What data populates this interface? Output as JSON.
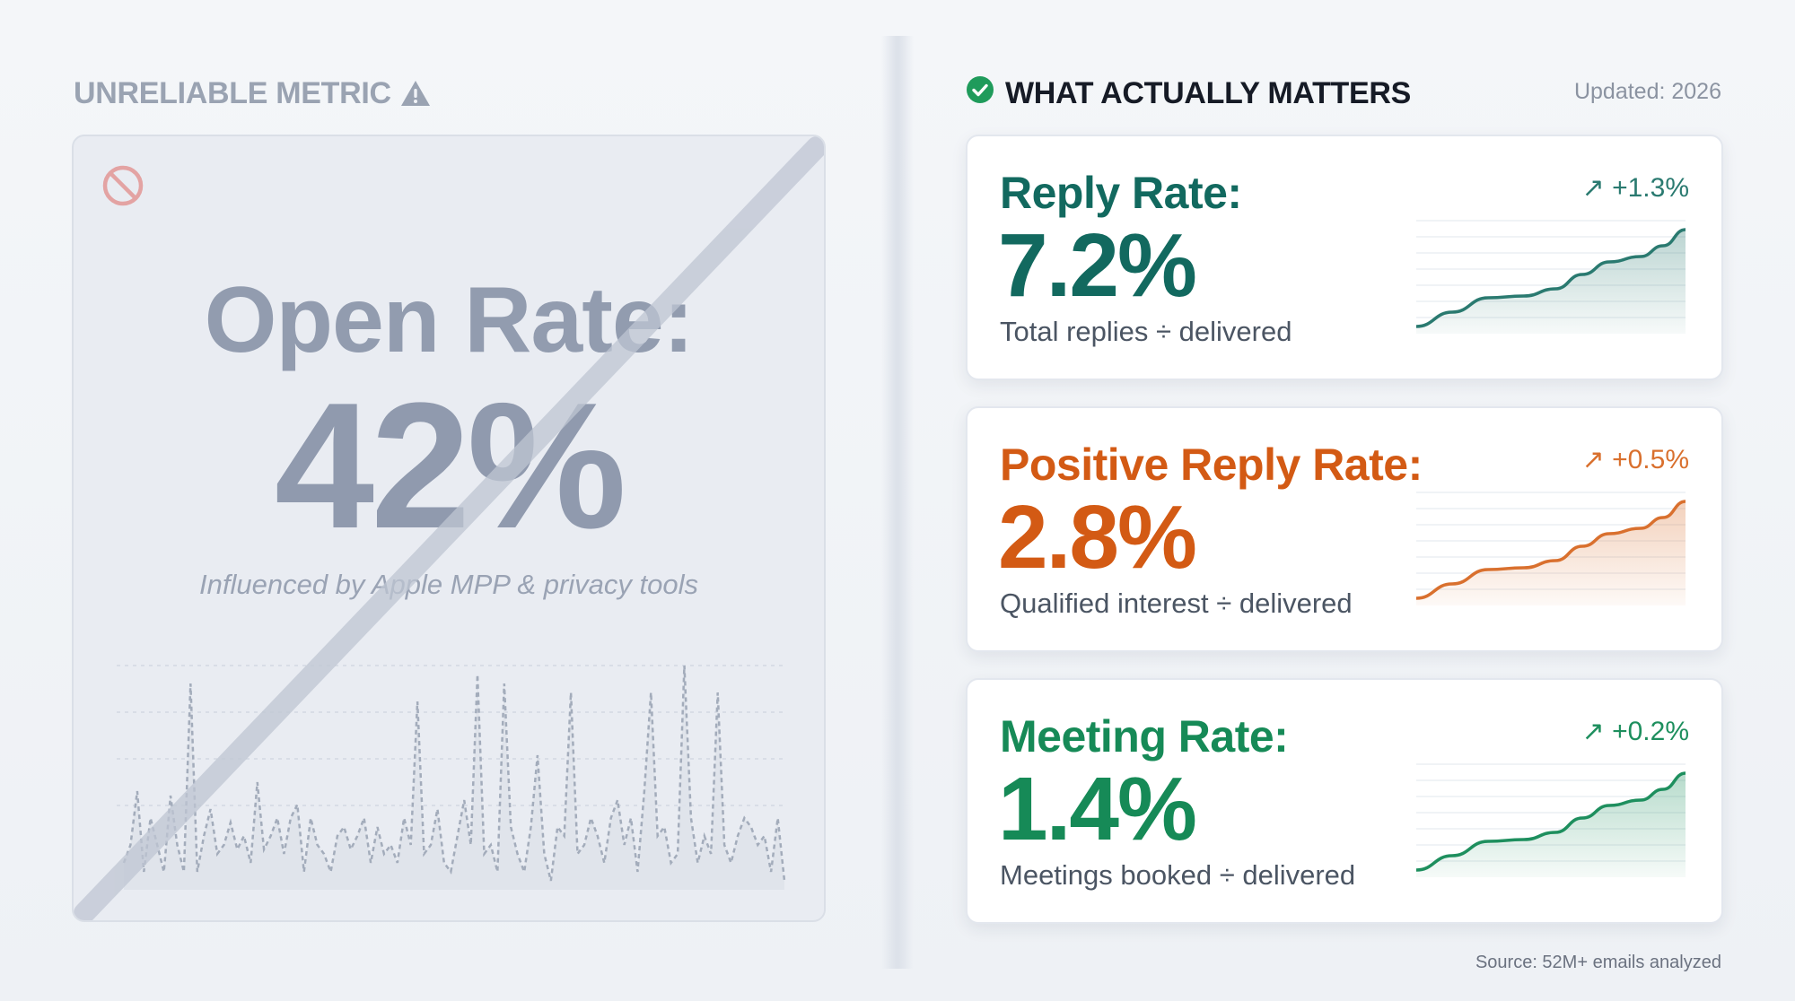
{
  "left": {
    "heading": "UNRELIABLE METRIC",
    "heading_icon": "warning-triangle-icon",
    "block_icon": "prohibited-icon",
    "metric_label": "Open Rate:",
    "metric_value": "42%",
    "note": "Influenced by Apple MPP & privacy tools"
  },
  "right": {
    "heading": "WHAT ACTUALLY MATTERS",
    "heading_icon": "check-circle-icon",
    "updated": "Updated: 2026",
    "metrics": [
      {
        "label": "Reply Rate:",
        "value": "7.2%",
        "description": "Total replies ÷ delivered",
        "delta": "↗ +1.3%",
        "color": "#12695f",
        "accent": "#2a7a70"
      },
      {
        "label": "Positive Reply Rate:",
        "value": "2.8%",
        "description": "Qualified interest ÷ delivered",
        "delta": "↗ +0.5%",
        "color": "#d35a14",
        "accent": "#d9702e"
      },
      {
        "label": "Meeting Rate:",
        "value": "1.4%",
        "description": "Meetings booked ÷ delivered",
        "delta": "↗ +0.2%",
        "color": "#168a57",
        "accent": "#1e8f5e"
      }
    ],
    "source": "Source: 52M+ emails analyzed"
  },
  "colors": {
    "background": "#f2f4f7",
    "muted": "#9aa3b2",
    "warning": "#e3a3a3",
    "check": "#1f9b5b"
  }
}
